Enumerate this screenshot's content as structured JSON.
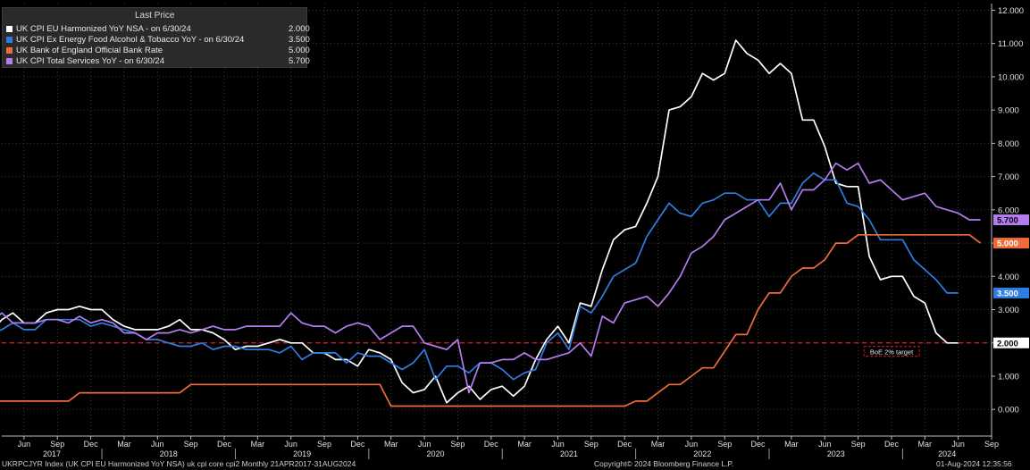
{
  "legend": {
    "header": "Last Price",
    "items": [
      {
        "label": "UK CPI EU Harmonized YoY NSA -  on 6/30/24",
        "value": "2.000",
        "color": "#ffffff"
      },
      {
        "label": "UK CPI Ex Energy Food Alcohol & Tobacco YoY -  on 6/30/24",
        "value": "3.500",
        "color": "#2f7de1"
      },
      {
        "label": "UK Bank of England Official Bank Rate",
        "value": "5.000",
        "color": "#f06b3a"
      },
      {
        "label": "UK CPI Total Services YoY -  on 6/30/24",
        "value": "5.700",
        "color": "#b57cf0"
      }
    ]
  },
  "footer": {
    "left": "UKRPCJYR Index (UK CPI EU Harmonized YoY NSA) uk cpi core cpi2  Monthly 21APR2017-31AUG2024",
    "center": "Copyright© 2024 Bloomberg Finance L.P.",
    "right": "01-Aug-2024 12:35:56"
  },
  "chart_data": {
    "type": "line",
    "x_start": "2017-04",
    "x_end": "2024-09",
    "x_month_ticks": [
      "Jun",
      "Sep",
      "Dec",
      "Mar",
      "Jun",
      "Sep",
      "Dec",
      "Mar",
      "Jun",
      "Sep",
      "Dec",
      "Mar",
      "Jun",
      "Sep",
      "Dec",
      "Mar",
      "Jun",
      "Sep",
      "Dec",
      "Mar",
      "Jun",
      "Sep",
      "Dec",
      "Mar",
      "Jun",
      "Sep",
      "Dec",
      "Mar",
      "Jun",
      "Sep"
    ],
    "x_year_labels": [
      "2017",
      "2018",
      "2019",
      "2020",
      "2021",
      "2022",
      "2023",
      "2024"
    ],
    "ylim": [
      -0.8,
      12.2
    ],
    "y_ticks": [
      "12.000",
      "11.000",
      "10.000",
      "9.000",
      "8.000",
      "7.000",
      "6.000",
      "5.000",
      "4.000",
      "3.000",
      "2.000",
      "1.000",
      "0.000"
    ],
    "reference_line": {
      "value": 2.0,
      "label": "BoE 2% target",
      "color": "#e02020"
    },
    "last_value_labels": [
      {
        "series": 3,
        "text": "5.700"
      },
      {
        "series": 2,
        "text": "5.000"
      },
      {
        "series": 1,
        "text": "3.500"
      },
      {
        "series": 0,
        "text": "2.000"
      }
    ],
    "series": [
      {
        "name": "UK CPI EU Harmonized YoY NSA",
        "color": "#ffffff",
        "start": "2017-03",
        "values": [
          2.3,
          2.7,
          2.9,
          2.6,
          2.6,
          2.9,
          3.0,
          3.0,
          3.1,
          3.0,
          3.0,
          2.7,
          2.5,
          2.4,
          2.4,
          2.4,
          2.5,
          2.7,
          2.4,
          2.4,
          2.3,
          2.1,
          1.8,
          1.9,
          1.9,
          2.0,
          2.1,
          2.0,
          2.0,
          1.7,
          1.7,
          1.5,
          1.5,
          1.3,
          1.8,
          1.7,
          1.5,
          0.8,
          0.5,
          0.6,
          1.0,
          0.2,
          0.5,
          0.7,
          0.3,
          0.6,
          0.7,
          0.4,
          0.7,
          1.5,
          2.1,
          2.5,
          2.0,
          3.2,
          3.1,
          4.2,
          5.1,
          5.4,
          5.5,
          6.2,
          7.0,
          9.0,
          9.1,
          9.4,
          10.1,
          9.9,
          10.1,
          11.1,
          10.7,
          10.5,
          10.1,
          10.4,
          10.1,
          8.7,
          8.7,
          7.9,
          6.8,
          6.7,
          6.7,
          4.6,
          3.9,
          4.0,
          4.0,
          3.4,
          3.2,
          2.3,
          2.0,
          2.0
        ]
      },
      {
        "name": "UK CPI Ex Energy Food Alcohol & Tobacco YoY",
        "color": "#2f7de1",
        "start": "2017-03",
        "values": [
          2.3,
          2.4,
          2.6,
          2.4,
          2.4,
          2.7,
          2.7,
          2.7,
          2.7,
          2.5,
          2.6,
          2.5,
          2.4,
          2.3,
          2.1,
          2.1,
          2.0,
          1.9,
          1.9,
          2.0,
          1.8,
          1.9,
          1.9,
          1.8,
          1.8,
          1.8,
          1.7,
          1.9,
          1.5,
          1.7,
          1.7,
          1.7,
          1.4,
          1.7,
          1.6,
          1.6,
          1.4,
          1.2,
          1.4,
          1.8,
          0.9,
          1.3,
          1.3,
          1.1,
          1.4,
          1.4,
          1.2,
          0.9,
          1.1,
          1.2,
          2.0,
          2.3,
          1.8,
          3.1,
          2.9,
          3.4,
          4.0,
          4.2,
          4.4,
          5.2,
          5.7,
          6.2,
          5.9,
          5.8,
          6.2,
          6.3,
          6.5,
          6.5,
          6.3,
          6.3,
          5.8,
          6.2,
          6.2,
          6.8,
          7.1,
          6.9,
          6.9,
          6.2,
          6.1,
          5.7,
          5.1,
          5.1,
          5.1,
          4.5,
          4.2,
          3.9,
          3.5,
          3.5
        ]
      },
      {
        "name": "UK Bank of England Official Bank Rate",
        "color": "#f06b3a",
        "start": "2017-03",
        "values": [
          0.25,
          0.25,
          0.25,
          0.25,
          0.25,
          0.25,
          0.25,
          0.25,
          0.5,
          0.5,
          0.5,
          0.5,
          0.5,
          0.5,
          0.5,
          0.5,
          0.5,
          0.5,
          0.75,
          0.75,
          0.75,
          0.75,
          0.75,
          0.75,
          0.75,
          0.75,
          0.75,
          0.75,
          0.75,
          0.75,
          0.75,
          0.75,
          0.75,
          0.75,
          0.75,
          0.75,
          0.1,
          0.1,
          0.1,
          0.1,
          0.1,
          0.1,
          0.1,
          0.1,
          0.1,
          0.1,
          0.1,
          0.1,
          0.1,
          0.1,
          0.1,
          0.1,
          0.1,
          0.1,
          0.1,
          0.1,
          0.1,
          0.1,
          0.25,
          0.25,
          0.5,
          0.75,
          0.75,
          1.0,
          1.25,
          1.25,
          1.75,
          2.25,
          2.25,
          3.0,
          3.5,
          3.5,
          4.0,
          4.25,
          4.25,
          4.5,
          5.0,
          5.0,
          5.25,
          5.25,
          5.25,
          5.25,
          5.25,
          5.25,
          5.25,
          5.25,
          5.25,
          5.25,
          5.25,
          5.0
        ]
      },
      {
        "name": "UK CPI Total Services YoY",
        "color": "#b57cf0",
        "start": "2017-03",
        "values": [
          2.6,
          2.9,
          2.6,
          2.6,
          2.6,
          2.7,
          2.7,
          2.6,
          2.8,
          2.6,
          2.7,
          2.6,
          2.3,
          2.3,
          2.1,
          2.3,
          2.3,
          2.4,
          2.3,
          2.4,
          2.5,
          2.4,
          2.4,
          2.5,
          2.5,
          2.5,
          2.5,
          2.9,
          2.6,
          2.5,
          2.5,
          2.3,
          2.5,
          2.6,
          2.5,
          2.1,
          2.3,
          2.5,
          2.5,
          2.0,
          1.9,
          1.8,
          2.1,
          0.5,
          1.4,
          1.4,
          1.5,
          1.5,
          1.7,
          1.5,
          1.5,
          1.6,
          1.7,
          2.0,
          1.6,
          2.8,
          2.6,
          3.2,
          3.3,
          3.4,
          3.1,
          3.5,
          4.0,
          4.7,
          4.9,
          5.2,
          5.7,
          5.9,
          6.1,
          6.3,
          6.3,
          6.8,
          6.0,
          6.6,
          6.6,
          6.9,
          7.4,
          7.2,
          7.4,
          6.8,
          6.9,
          6.6,
          6.3,
          6.4,
          6.5,
          6.1,
          6.0,
          5.9,
          5.7,
          5.7
        ]
      }
    ]
  }
}
